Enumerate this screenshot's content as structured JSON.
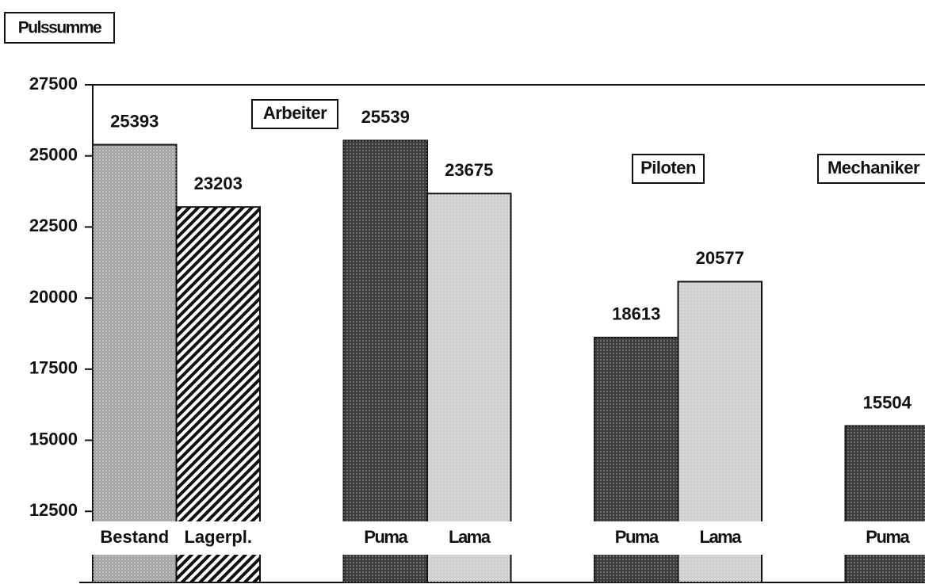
{
  "chart_data": {
    "type": "bar",
    "y_label": "Pulssumme",
    "categories": [
      "Bestand",
      "Lagerpl.",
      "Puma",
      "Lama",
      "Puma",
      "Lama",
      "Puma"
    ],
    "values": [
      25393,
      23203,
      25539,
      23675,
      18613,
      20577,
      15504
    ],
    "colors": [
      "#a8a8a8",
      "#8c8c8c",
      "#3c3c3c",
      "#cfcfcf",
      "#3c3c3c",
      "#cfcfcf",
      "#3c3c3c"
    ],
    "groups": [
      "Arbeiter",
      "Piloten",
      "Mechaniker"
    ],
    "ylim": [
      10000,
      27500
    ],
    "yticks": [
      12500,
      15000,
      17500,
      20000,
      22500,
      25000,
      27500
    ]
  }
}
